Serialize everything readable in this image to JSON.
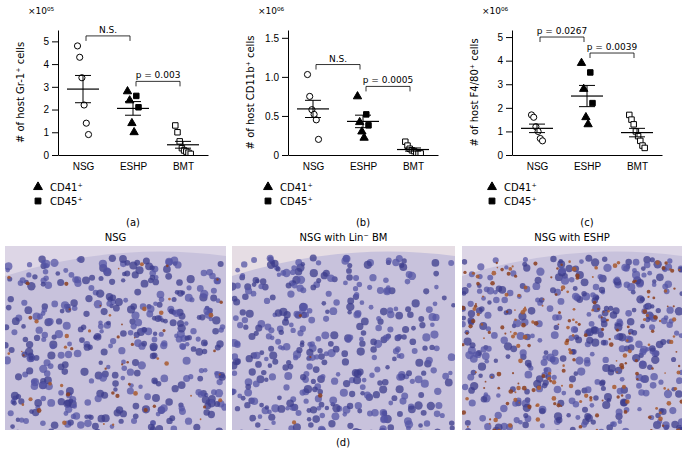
{
  "chart_data": [
    {
      "type": "scatter",
      "panel_label": "(a)",
      "y_label": "# of host Gr-1⁺ cells",
      "y_exponent_label": "×10⁰⁵",
      "categories": [
        "NSG",
        "ESHP",
        "BMT"
      ],
      "ylim": [
        0,
        5.5
      ],
      "yticks": [
        0,
        1,
        2,
        3,
        4,
        5
      ],
      "legend": "bottom",
      "series": [
        {
          "marker": "circle-open",
          "color": "#000000",
          "x": [
            "NSG",
            "NSG",
            "NSG",
            "NSG",
            "NSG",
            "NSG"
          ],
          "values": [
            4.8,
            4.3,
            3.4,
            2.2,
            1.4,
            0.9
          ]
        },
        {
          "name": "CD41⁺",
          "marker": "triangle",
          "color": "#000000",
          "x": [
            "ESHP",
            "ESHP",
            "ESHP",
            "ESHP"
          ],
          "values": [
            2.8,
            2.4,
            1.4,
            1.0
          ]
        },
        {
          "name": "CD45⁺",
          "marker": "square",
          "color": "#000000",
          "x": [
            "ESHP",
            "ESHP"
          ],
          "values": [
            2.6,
            2.1
          ]
        },
        {
          "marker": "square-open",
          "color": "#000000",
          "x": [
            "BMT",
            "BMT",
            "BMT",
            "BMT",
            "BMT",
            "BMT",
            "BMT",
            "BMT"
          ],
          "values": [
            1.3,
            1.0,
            0.6,
            0.3,
            0.2,
            0.15,
            0.1,
            0.05
          ]
        }
      ],
      "means": [
        2.9,
        2.05,
        0.45
      ],
      "errors": [
        0.6,
        0.3,
        0.15
      ],
      "annotations": [
        {
          "text": "N.S.",
          "from": "NSG",
          "to": "ESHP"
        },
        {
          "text": "p = 0.003",
          "from": "ESHP",
          "to": "BMT"
        }
      ]
    },
    {
      "type": "scatter",
      "panel_label": "(b)",
      "y_label": "# of host CD11b⁺ cells",
      "y_exponent_label": "×10⁰⁶",
      "categories": [
        "NSG",
        "ESHP",
        "BMT"
      ],
      "ylim": [
        0,
        1.6
      ],
      "yticks": [
        0,
        0.5,
        {
          "value": 1,
          "label": "1.0"
        },
        1.5
      ],
      "legend": "bottom",
      "series": [
        {
          "marker": "circle-open",
          "color": "#000000",
          "x": [
            "NSG",
            "NSG",
            "NSG",
            "NSG",
            "NSG",
            "NSG"
          ],
          "values": [
            1.03,
            0.75,
            0.58,
            0.52,
            0.45,
            0.2
          ]
        },
        {
          "name": "CD41⁺",
          "marker": "triangle",
          "color": "#000000",
          "x": [
            "ESHP",
            "ESHP",
            "ESHP",
            "ESHP"
          ],
          "values": [
            0.75,
            0.42,
            0.3,
            0.22
          ]
        },
        {
          "name": "CD45⁺",
          "marker": "square",
          "color": "#000000",
          "x": [
            "ESHP",
            "ESHP"
          ],
          "values": [
            0.52,
            0.38
          ]
        },
        {
          "marker": "square-open",
          "color": "#000000",
          "x": [
            "BMT",
            "BMT",
            "BMT",
            "BMT",
            "BMT",
            "BMT",
            "BMT",
            "BMT"
          ],
          "values": [
            0.17,
            0.12,
            0.08,
            0.06,
            0.05,
            0.03,
            0.02,
            0.02
          ]
        }
      ],
      "means": [
        0.59,
        0.43,
        0.07
      ],
      "errors": [
        0.11,
        0.08,
        0.02
      ],
      "annotations": [
        {
          "text": "N.S.",
          "from": "NSG",
          "to": "ESHP"
        },
        {
          "text": "p = 0.0005",
          "from": "ESHP",
          "to": "BMT"
        }
      ]
    },
    {
      "type": "scatter",
      "panel_label": "(c)",
      "y_label": "# of host F4/80⁺ cells",
      "y_exponent_label": "×10⁰⁶",
      "categories": [
        "NSG",
        "ESHP",
        "BMT"
      ],
      "ylim": [
        0,
        5.3
      ],
      "yticks": [
        0,
        1,
        2,
        3,
        4,
        5
      ],
      "legend": "bottom",
      "series": [
        {
          "marker": "circle-open",
          "color": "#000000",
          "x": [
            "NSG",
            "NSG",
            "NSG",
            "NSG",
            "NSG",
            "NSG"
          ],
          "values": [
            1.7,
            1.6,
            1.2,
            1.0,
            0.7,
            0.6
          ]
        },
        {
          "name": "CD41⁺",
          "marker": "triangle",
          "color": "#000000",
          "x": [
            "ESHP",
            "ESHP",
            "ESHP",
            "ESHP"
          ],
          "values": [
            3.9,
            2.8,
            1.6,
            1.3
          ]
        },
        {
          "name": "CD45⁺",
          "marker": "square",
          "color": "#000000",
          "x": [
            "ESHP",
            "ESHP"
          ],
          "values": [
            3.5,
            2.2
          ]
        },
        {
          "marker": "square-open",
          "color": "#000000",
          "x": [
            "BMT",
            "BMT",
            "BMT",
            "BMT",
            "BMT",
            "BMT",
            "BMT",
            "BMT"
          ],
          "values": [
            1.7,
            1.5,
            1.3,
            1.0,
            0.8,
            0.6,
            0.4,
            0.3
          ]
        }
      ],
      "means": [
        1.13,
        2.5,
        0.95
      ],
      "errors": [
        0.18,
        0.45,
        0.18
      ],
      "annotations": [
        {
          "text": "p = 0.0267",
          "from": "NSG",
          "to": "ESHP"
        },
        {
          "text": "p = 0.0039",
          "from": "ESHP",
          "to": "BMT"
        }
      ]
    }
  ],
  "panel_d": {
    "label": "(d)",
    "captions": [
      "NSG",
      "NSG with Lin⁻ BM",
      "NSG with ESHP"
    ]
  }
}
